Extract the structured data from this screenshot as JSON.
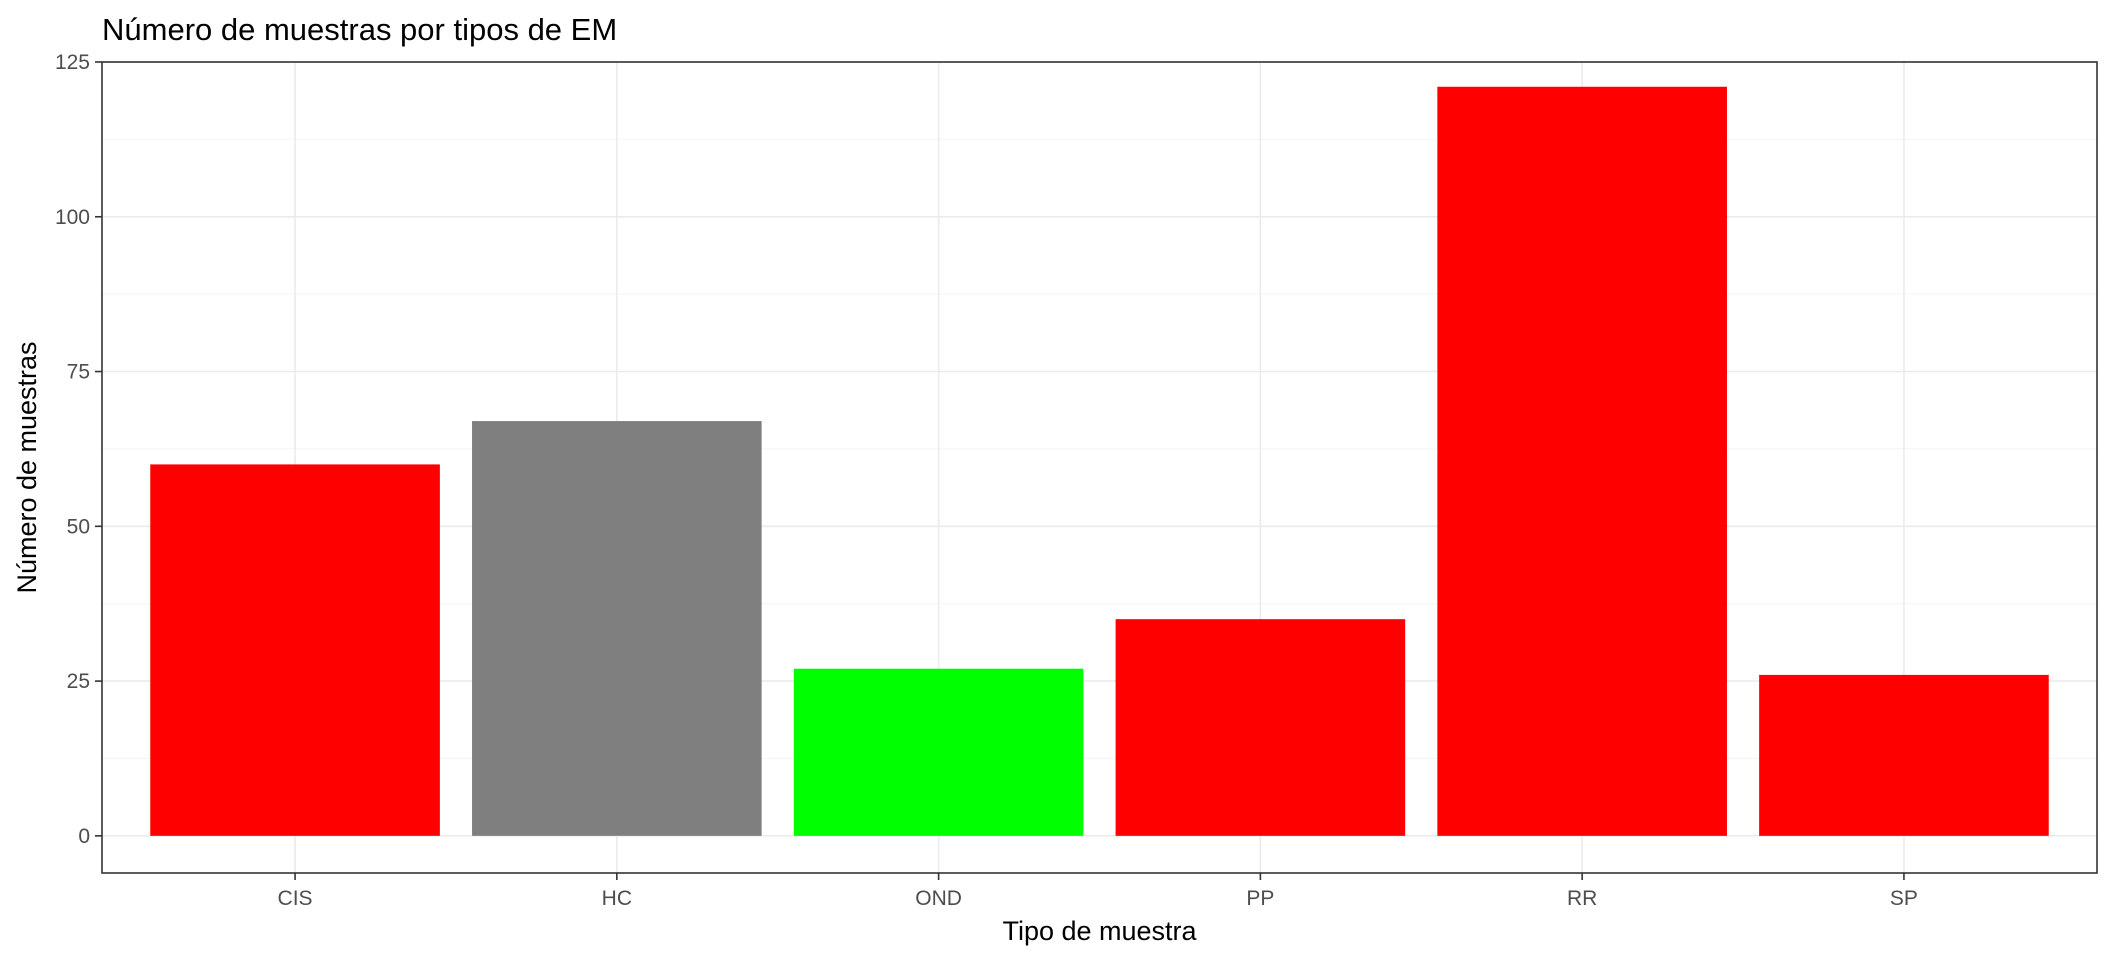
{
  "chart_data": {
    "type": "bar",
    "title": "Número de muestras por tipos de EM",
    "xlabel": "Tipo de muestra",
    "ylabel": "Número de muestras",
    "categories": [
      "CIS",
      "HC",
      "OND",
      "PP",
      "RR",
      "SP"
    ],
    "values": [
      60,
      67,
      27,
      35,
      121,
      26
    ],
    "bar_colors": [
      "#ff0000",
      "#7f7f7f",
      "#00ff00",
      "#ff0000",
      "#ff0000",
      "#ff0000"
    ],
    "ylim": [
      -6,
      125
    ],
    "yticks": [
      0,
      25,
      50,
      75,
      100,
      125
    ],
    "grid": true,
    "legend": "none"
  }
}
